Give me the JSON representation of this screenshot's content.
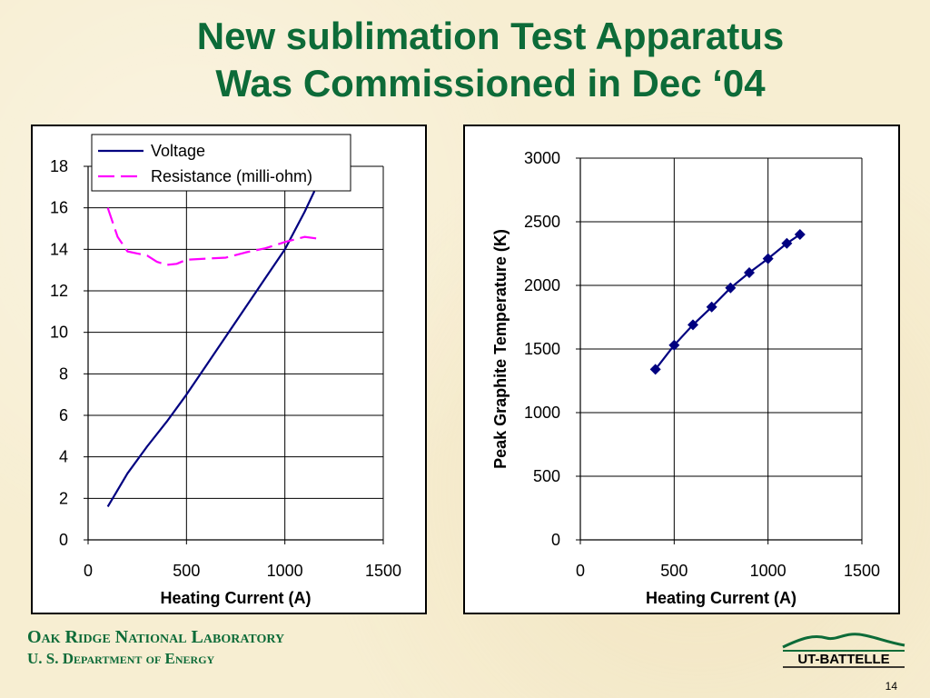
{
  "slide": {
    "title_line1": "New sublimation Test Apparatus",
    "title_line2": "Was Commissioned in Dec ‘04",
    "org_name": "Oak Ridge National Laboratory",
    "org_dept": "U. S. Department of Energy",
    "logo_text": "UT-BATTELLE",
    "page_number": "14"
  },
  "colors": {
    "title": "#0d6b38",
    "voltage": "#000080",
    "resistance": "#ff00ff",
    "temperature": "#000080"
  },
  "chart_data": [
    {
      "type": "line",
      "title": "",
      "xlabel": "Heating Current (A)",
      "ylabel": "",
      "xlim": [
        0,
        1500
      ],
      "ylim": [
        0,
        18
      ],
      "x_ticks": [
        "0",
        "500",
        "1000",
        "1500"
      ],
      "y_ticks": [
        "0",
        "2",
        "4",
        "6",
        "8",
        "10",
        "12",
        "14",
        "16",
        "18"
      ],
      "grid": true,
      "legend": "top",
      "series": [
        {
          "name": "Voltage",
          "style": "solid",
          "x": [
            100,
            200,
            300,
            400,
            500,
            600,
            700,
            800,
            900,
            1000,
            1100,
            1150
          ],
          "y": [
            1.6,
            3.2,
            4.5,
            5.7,
            7.0,
            8.4,
            9.8,
            11.2,
            12.6,
            14.0,
            15.8,
            16.8
          ]
        },
        {
          "name": "Resistance (milli-ohm)",
          "style": "dashed",
          "x": [
            100,
            150,
            200,
            250,
            300,
            350,
            400,
            450,
            500,
            600,
            700,
            800,
            900,
            1000,
            1100,
            1180
          ],
          "y": [
            16.0,
            14.6,
            13.9,
            13.8,
            13.7,
            13.4,
            13.25,
            13.3,
            13.5,
            13.55,
            13.6,
            13.85,
            14.05,
            14.35,
            14.6,
            14.5
          ]
        }
      ]
    },
    {
      "type": "line",
      "title": "",
      "xlabel": "Heating Current (A)",
      "ylabel": "Peak Graphite Temperature (K)",
      "xlim": [
        0,
        1500
      ],
      "ylim": [
        0,
        3000
      ],
      "x_ticks": [
        "0",
        "500",
        "1000",
        "1500"
      ],
      "y_ticks": [
        "0",
        "500",
        "1000",
        "1500",
        "2000",
        "2500",
        "3000"
      ],
      "grid": true,
      "series": [
        {
          "marker": "diamond",
          "x": [
            400,
            500,
            600,
            700,
            800,
            900,
            1000,
            1100,
            1170
          ],
          "y": [
            1340,
            1530,
            1690,
            1830,
            1980,
            2100,
            2210,
            2330,
            2400
          ]
        }
      ]
    }
  ]
}
